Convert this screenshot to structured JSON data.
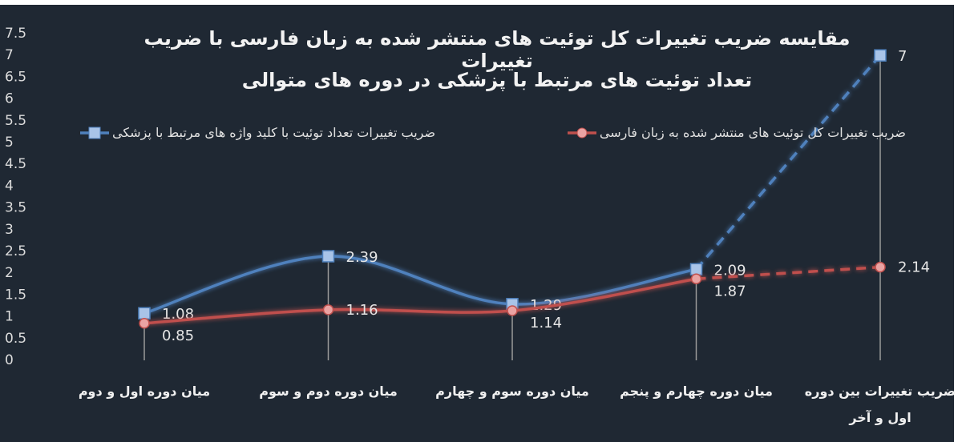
{
  "chart_data": {
    "type": "line",
    "title": [
      "مقایسه ضریب تغییرات کل توئیت های منتشر شده به زبان فارسی با ضریب تغییرات",
      "تعداد توئیت های مرتبط با پزشکی در دوره های متوالی"
    ],
    "categories": [
      "میان دوره اول و دوم",
      "میان دوره دوم و سوم",
      "میان دوره سوم و چهارم",
      "میان دوره چهارم و پنجم",
      "ضریب تغییرات بین دوره اول و آخر"
    ],
    "series": [
      {
        "name": "ضریب تغییرات تعداد توئیت با کلید واژه های مرتبط با پزشکی",
        "color": "#4f81bd",
        "values": [
          1.08,
          2.39,
          1.29,
          2.09,
          7
        ]
      },
      {
        "name": "ضریب تغییرات کل توئیت های منتشر شده به زبان فارسی",
        "color": "#c0504d",
        "values": [
          0.85,
          1.16,
          1.14,
          1.87,
          2.14
        ]
      }
    ],
    "ylim": [
      0,
      7.5
    ],
    "yticks": [
      0,
      0.5,
      1,
      1.5,
      2,
      2.5,
      3,
      3.5,
      4,
      4.5,
      5,
      5.5,
      6,
      6.5,
      7,
      7.5
    ],
    "background": "#1f2833"
  }
}
